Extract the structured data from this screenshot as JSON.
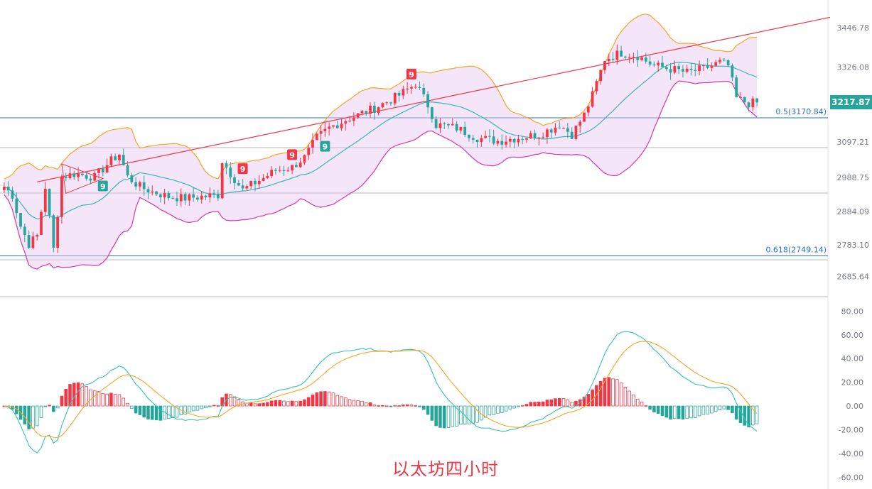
{
  "caption": "以太坊四小时",
  "colors": {
    "up": "#f23645",
    "down": "#26a69a",
    "bb_upper": "#f5a623",
    "bb_lower": "#d13aa8",
    "bb_mid": "#35b5b8",
    "bb_fill": "#e9c6f2",
    "trend": "#f23645",
    "fib": "#2a6fdb",
    "macd_dif": "#35c3b5",
    "macd_dea": "#f5a623"
  },
  "price_axis": {
    "ticks": [
      "3446.78",
      "3326.08",
      "3097.21",
      "2988.75",
      "2884.09",
      "2783.10",
      "2685.64"
    ],
    "tick_values": [
      3446.78,
      3326.08,
      3097.21,
      2988.75,
      2884.09,
      2783.1,
      2685.64
    ],
    "current_price": "3217.87",
    "current_value": 3217.87
  },
  "fib_levels": [
    {
      "label": "0.5(3170.84)",
      "value": 3170.84
    },
    {
      "label": "0.618(2749.14)",
      "value": 2749.14
    }
  ],
  "td_markers": [
    {
      "label": "9",
      "bar": 58,
      "type": "sell"
    },
    {
      "label": "9",
      "bar": 70,
      "type": "sell"
    },
    {
      "label": "9",
      "bar": 99,
      "type": "sell"
    },
    {
      "label": "9",
      "bar": 24,
      "type": "buy"
    },
    {
      "label": "9",
      "bar": 78,
      "type": "buy"
    }
  ],
  "macd_axis": {
    "ticks": [
      "80.00",
      "60.00",
      "40.00",
      "20.00",
      "0.00",
      "-20.00",
      "-40.00",
      "-60.00"
    ],
    "tick_values": [
      80,
      60,
      40,
      20,
      0,
      -20,
      -40,
      -60
    ]
  },
  "chart_data": {
    "type": "candlestick",
    "price_range": [
      2620,
      3520
    ],
    "macd_range": [
      -70,
      85
    ],
    "candles": [],
    "macd_hist": [],
    "macd_dif": [],
    "macd_dea": []
  }
}
